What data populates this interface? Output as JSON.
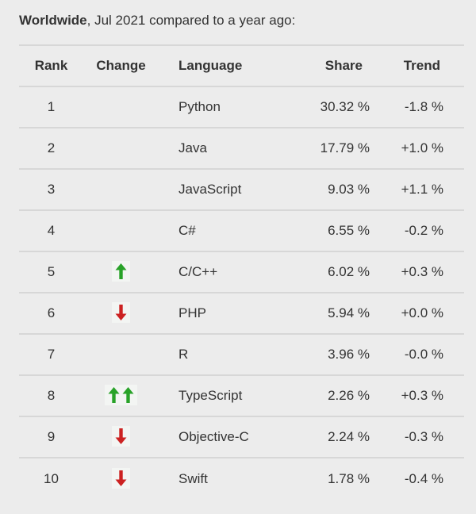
{
  "title": {
    "region": "Worldwide",
    "suffix": ", Jul 2021 compared to a year ago:"
  },
  "table": {
    "headers": {
      "rank": "Rank",
      "change": "Change",
      "language": "Language",
      "share": "Share",
      "trend": "Trend"
    },
    "rows": [
      {
        "rank": "1",
        "change": "",
        "language": "Python",
        "share": "30.32 %",
        "trend": "-1.8 %"
      },
      {
        "rank": "2",
        "change": "",
        "language": "Java",
        "share": "17.79 %",
        "trend": "+1.0 %"
      },
      {
        "rank": "3",
        "change": "",
        "language": "JavaScript",
        "share": "9.03 %",
        "trend": "+1.1 %"
      },
      {
        "rank": "4",
        "change": "",
        "language": "C#",
        "share": "6.55 %",
        "trend": "-0.2 %"
      },
      {
        "rank": "5",
        "change": "up",
        "language": "C/C++",
        "share": "6.02 %",
        "trend": "+0.3 %"
      },
      {
        "rank": "6",
        "change": "down",
        "language": "PHP",
        "share": "5.94 %",
        "trend": "+0.0 %"
      },
      {
        "rank": "7",
        "change": "",
        "language": "R",
        "share": "3.96 %",
        "trend": "-0.0 %"
      },
      {
        "rank": "8",
        "change": "up-up",
        "language": "TypeScript",
        "share": "2.26 %",
        "trend": "+0.3 %"
      },
      {
        "rank": "9",
        "change": "down",
        "language": "Objective-C",
        "share": "2.24 %",
        "trend": "-0.3 %"
      },
      {
        "rank": "10",
        "change": "down",
        "language": "Swift",
        "share": "1.78 %",
        "trend": "-0.4 %"
      }
    ]
  },
  "colors": {
    "background": "#ececec",
    "text": "#333333",
    "border": "#d7d7d7",
    "up_arrow": "#28a228",
    "down_arrow": "#cc2222",
    "badge_background": "#f3f5f3"
  },
  "chart_data": {
    "type": "table",
    "title": "Worldwide, Jul 2021 compared to a year ago:",
    "columns": [
      "Rank",
      "Change",
      "Language",
      "Share",
      "Trend"
    ],
    "rows": [
      {
        "rank": 1,
        "change": "",
        "language": "Python",
        "share_pct": 30.32,
        "trend_pct": -1.8
      },
      {
        "rank": 2,
        "change": "",
        "language": "Java",
        "share_pct": 17.79,
        "trend_pct": 1.0
      },
      {
        "rank": 3,
        "change": "",
        "language": "JavaScript",
        "share_pct": 9.03,
        "trend_pct": 1.1
      },
      {
        "rank": 4,
        "change": "",
        "language": "C#",
        "share_pct": 6.55,
        "trend_pct": -0.2
      },
      {
        "rank": 5,
        "change": "up",
        "language": "C/C++",
        "share_pct": 6.02,
        "trend_pct": 0.3
      },
      {
        "rank": 6,
        "change": "down",
        "language": "PHP",
        "share_pct": 5.94,
        "trend_pct": 0.0
      },
      {
        "rank": 7,
        "change": "",
        "language": "R",
        "share_pct": 3.96,
        "trend_pct": -0.0
      },
      {
        "rank": 8,
        "change": "up-up",
        "language": "TypeScript",
        "share_pct": 2.26,
        "trend_pct": 0.3
      },
      {
        "rank": 9,
        "change": "down",
        "language": "Objective-C",
        "share_pct": 2.24,
        "trend_pct": -0.3
      },
      {
        "rank": 10,
        "change": "down",
        "language": "Swift",
        "share_pct": 1.78,
        "trend_pct": -0.4
      }
    ]
  }
}
